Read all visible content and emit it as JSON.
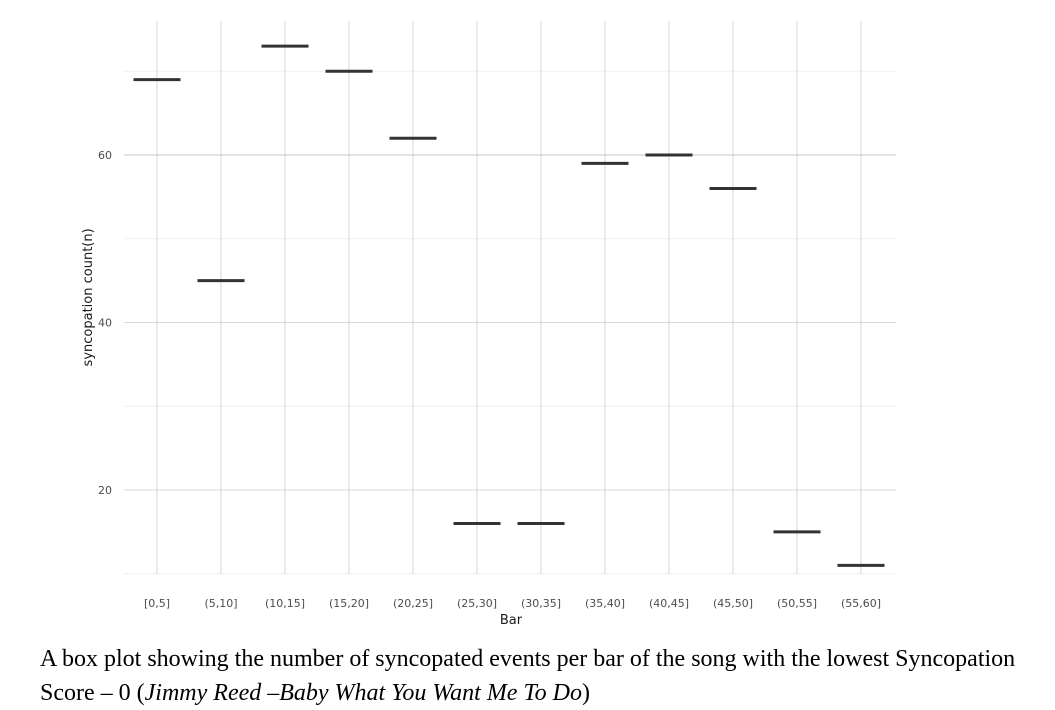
{
  "chart_data": {
    "type": "box",
    "xlabel": "Bar",
    "ylabel": "syncopation count(n)",
    "categories": [
      "[0,5]",
      "(5,10]",
      "(10,15]",
      "(15,20]",
      "(20,25]",
      "(25,30]",
      "(30,35]",
      "(35,40]",
      "(40,45]",
      "(45,50]",
      "(50,55]",
      "(55,60]"
    ],
    "values": [
      69,
      45,
      73,
      70,
      62,
      16,
      16,
      59,
      60,
      56,
      15,
      11
    ],
    "yticks": [
      20,
      40,
      60
    ],
    "ylim": [
      10,
      76
    ],
    "grid": true,
    "colors": {
      "box": "#333333",
      "grid_major": "#d9d9d9",
      "grid_minor": "#efefef",
      "tick_text": "#4d4d4d"
    }
  },
  "caption": {
    "text_before": "A box plot showing the number of syncopated events per bar of the song with the lowest Syncopation Score – 0 (",
    "artist_and_title": "Jimmy Reed –Baby What You Want Me To Do",
    "text_after": ")"
  }
}
